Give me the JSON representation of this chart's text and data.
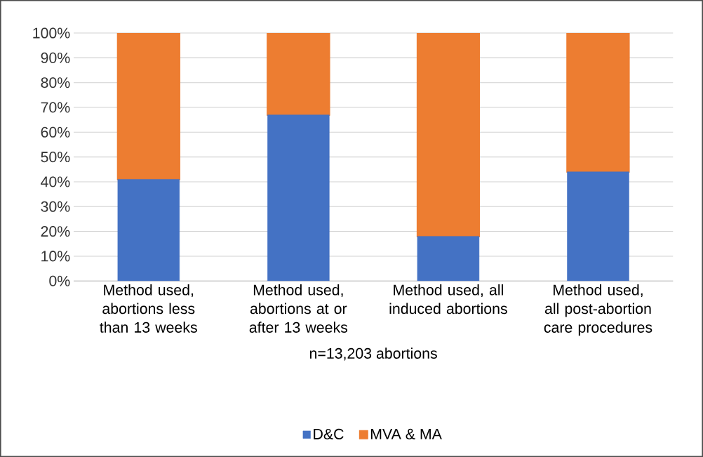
{
  "chart_data": {
    "type": "bar",
    "stacked": true,
    "categories": [
      "Method used, abortions less than 13 weeks",
      "Method used, abortions at or after 13 weeks",
      "Method used, all induced abortions",
      "Method used, all post-abortion care procedures"
    ],
    "series": [
      {
        "name": "D&C",
        "color": "#4472c4",
        "values": [
          41,
          67,
          18,
          44
        ]
      },
      {
        "name": "MVA & MA",
        "color": "#ed7d31",
        "values": [
          59,
          33,
          82,
          56
        ]
      }
    ],
    "xlabel": "n=13,203 abortions",
    "ylim": [
      0,
      100
    ],
    "yticks": [
      {
        "value": 0,
        "label": "0%"
      },
      {
        "value": 10,
        "label": "10%"
      },
      {
        "value": 20,
        "label": "20%"
      },
      {
        "value": 30,
        "label": "30%"
      },
      {
        "value": 40,
        "label": "40%"
      },
      {
        "value": 50,
        "label": "50%"
      },
      {
        "value": 60,
        "label": "60%"
      },
      {
        "value": 70,
        "label": "70%"
      },
      {
        "value": 80,
        "label": "80%"
      },
      {
        "value": 90,
        "label": "90%"
      },
      {
        "value": 100,
        "label": "100%"
      }
    ],
    "grid": "y",
    "legend": "bottom"
  }
}
